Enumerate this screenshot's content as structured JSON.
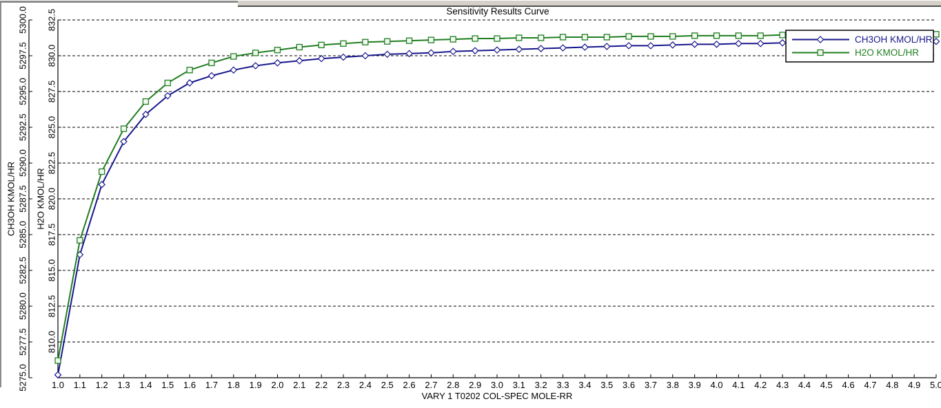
{
  "colors": {
    "ch3oh_series": "#16168C",
    "h2o_series": "#1F7D1F",
    "grid_line": "#000000",
    "axis_line": "#000000",
    "text": "#000000",
    "legend_background": "#FFFFFF",
    "legend_border": "#000000",
    "chrome_bar": "#D5D1C9",
    "chrome_edge": "#8C8C8C"
  },
  "chart_data": {
    "type": "line",
    "title": "Sensitivity Results Curve",
    "grid": {
      "horizontal": true,
      "style": "dashed",
      "aligned_to_axis": "h2o"
    },
    "legend": {
      "position": "top-right",
      "border": true,
      "entries": [
        "CH3OH KMOL/HR",
        "H2O KMOL/HR"
      ]
    },
    "x_axis": {
      "label": "VARY   1 T0202 COL-SPEC MOLE-RR",
      "min": 1.0,
      "max": 5.0,
      "tick_step": 0.1,
      "tick_labels": [
        "1.0",
        "1.1",
        "1.2",
        "1.3",
        "1.4",
        "1.5",
        "1.6",
        "1.7",
        "1.8",
        "1.9",
        "2.0",
        "2.1",
        "2.2",
        "2.3",
        "2.4",
        "2.5",
        "2.6",
        "2.7",
        "2.8",
        "2.9",
        "3.0",
        "3.1",
        "3.2",
        "3.3",
        "3.4",
        "3.5",
        "3.6",
        "3.7",
        "3.8",
        "3.9",
        "4.0",
        "4.1",
        "4.2",
        "4.3",
        "4.4",
        "4.5",
        "4.6",
        "4.7",
        "4.8",
        "4.9",
        "5.0"
      ]
    },
    "y_axes": [
      {
        "id": "ch3oh",
        "label": "CH3OH KMOL/HR",
        "min": 5275.0,
        "max": 5300.0,
        "tick_step": 2.5,
        "tick_labels": [
          "5275.0",
          "5277.5",
          "5280.0",
          "5282.5",
          "5285.0",
          "5287.5",
          "5290.0",
          "5292.5",
          "5295.0",
          "5297.5",
          "5300.0"
        ]
      },
      {
        "id": "h2o",
        "label": "H2O KMOL/HR",
        "min": 807.5,
        "max": 832.5,
        "tick_step": 2.5,
        "tick_labels": [
          "810.0",
          "812.5",
          "815.0",
          "817.5",
          "820.0",
          "822.5",
          "825.0",
          "827.5",
          "830.0",
          "832.5"
        ]
      }
    ],
    "x": [
      1.0,
      1.1,
      1.2,
      1.3,
      1.4,
      1.5,
      1.6,
      1.7,
      1.8,
      1.9,
      2.0,
      2.1,
      2.2,
      2.3,
      2.4,
      2.5,
      2.6,
      2.7,
      2.8,
      2.9,
      3.0,
      3.1,
      3.2,
      3.3,
      3.4,
      3.5,
      3.6,
      3.7,
      3.8,
      3.9,
      4.0,
      4.1,
      4.2,
      4.3,
      4.4,
      4.5,
      4.6,
      4.7,
      4.8,
      4.9,
      5.0
    ],
    "series": [
      {
        "name": "CH3OH KMOL/HR",
        "y_axis": "ch3oh",
        "color": "#16168C",
        "marker": "diamond",
        "values": [
          5275.2,
          5283.6,
          5288.5,
          5291.5,
          5293.4,
          5294.7,
          5295.6,
          5296.1,
          5296.5,
          5296.8,
          5297.0,
          5297.15,
          5297.3,
          5297.4,
          5297.5,
          5297.6,
          5297.65,
          5297.7,
          5297.8,
          5297.85,
          5297.9,
          5297.95,
          5298.0,
          5298.05,
          5298.1,
          5298.15,
          5298.2,
          5298.2,
          5298.25,
          5298.3,
          5298.3,
          5298.35,
          5298.35,
          5298.4,
          5298.4,
          5298.4,
          5298.45,
          5298.45,
          5298.45,
          5298.5,
          5298.5
        ]
      },
      {
        "name": "H2O KMOL/HR",
        "y_axis": "h2o",
        "color": "#1F7D1F",
        "marker": "square",
        "values": [
          808.7,
          817.1,
          821.9,
          824.9,
          826.8,
          828.1,
          829.0,
          829.5,
          829.95,
          830.2,
          830.4,
          830.6,
          830.75,
          830.85,
          830.95,
          831.0,
          831.05,
          831.1,
          831.15,
          831.2,
          831.2,
          831.25,
          831.25,
          831.3,
          831.3,
          831.3,
          831.35,
          831.35,
          831.35,
          831.4,
          831.4,
          831.4,
          831.4,
          831.45,
          831.45,
          831.45,
          831.45,
          831.5,
          831.5,
          831.5,
          831.5
        ]
      }
    ]
  }
}
